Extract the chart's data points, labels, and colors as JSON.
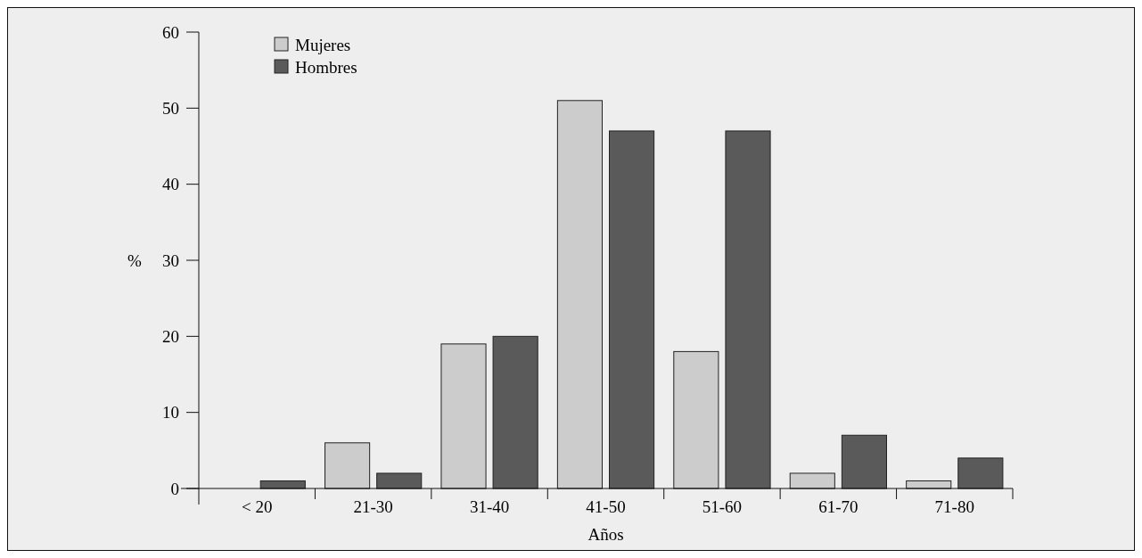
{
  "chart_data": {
    "type": "bar",
    "xlabel": "Años",
    "ylabel": "%",
    "categories": [
      "< 20",
      "21-30",
      "31-40",
      "41-50",
      "51-60",
      "61-70",
      "71-80"
    ],
    "series": [
      {
        "name": "Mujeres",
        "color": "#cccccc",
        "values": [
          0,
          6,
          19,
          51,
          18,
          2,
          1
        ]
      },
      {
        "name": "Hombres",
        "color": "#5a5a5a",
        "values": [
          1,
          2,
          20,
          47,
          47,
          7,
          4
        ]
      }
    ],
    "ylim": [
      0,
      60
    ],
    "yticks": [
      0,
      10,
      20,
      30,
      40,
      50,
      60
    ],
    "grid": false,
    "legend": "top left"
  }
}
